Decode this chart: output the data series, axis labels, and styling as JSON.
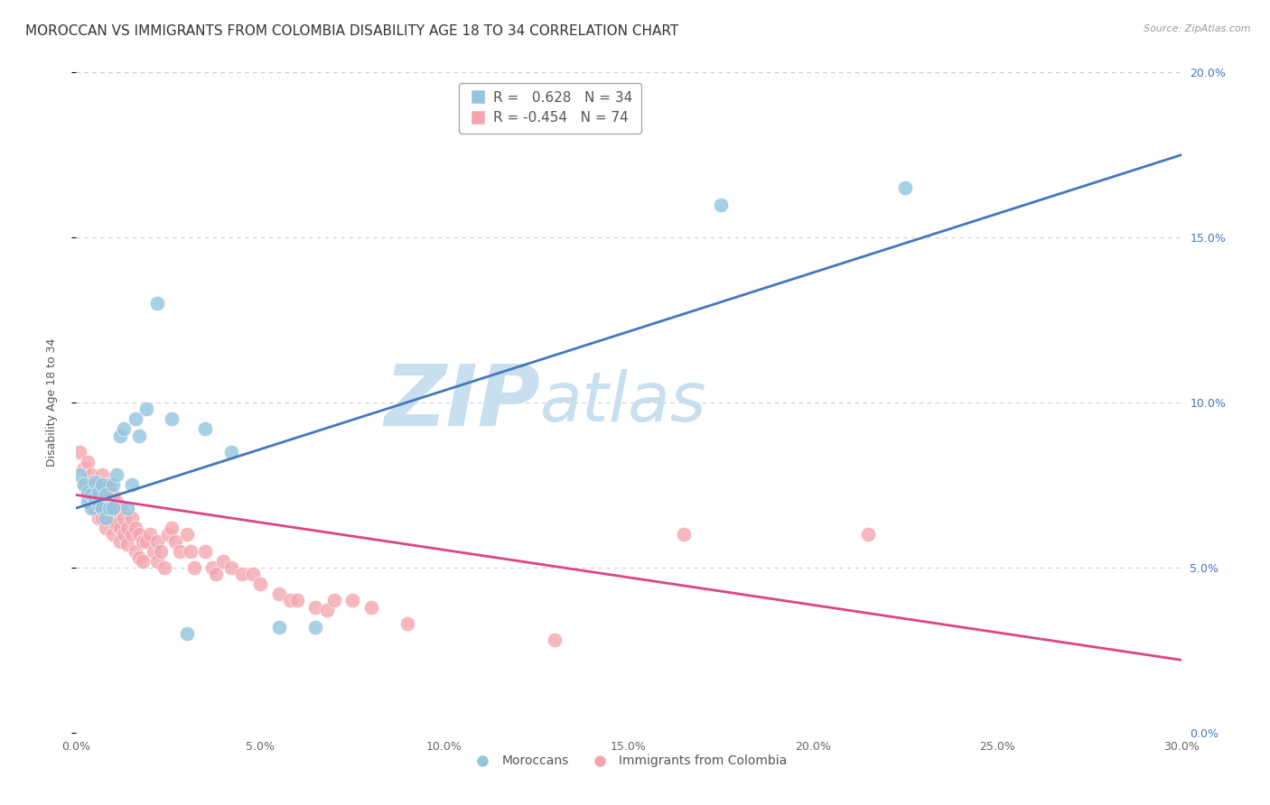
{
  "title": "MOROCCAN VS IMMIGRANTS FROM COLOMBIA DISABILITY AGE 18 TO 34 CORRELATION CHART",
  "source": "Source: ZipAtlas.com",
  "ylabel": "Disability Age 18 to 34",
  "xmin": 0.0,
  "xmax": 0.3,
  "ymin": 0.0,
  "ymax": 0.2,
  "legend_blue_R": "R =  0.628",
  "legend_blue_N": "N = 34",
  "legend_pink_R": "R = -0.454",
  "legend_pink_N": "N = 74",
  "blue_color": "#92c5de",
  "pink_color": "#f4a6b0",
  "blue_line_color": "#4477bb",
  "pink_line_color": "#dd4488",
  "blue_line_x0": 0.0,
  "blue_line_y0": 0.068,
  "blue_line_x1": 0.3,
  "blue_line_y1": 0.175,
  "pink_line_x0": 0.0,
  "pink_line_y0": 0.072,
  "pink_line_x1": 0.3,
  "pink_line_y1": 0.022,
  "moroccans_x": [
    0.001,
    0.002,
    0.003,
    0.003,
    0.004,
    0.004,
    0.005,
    0.005,
    0.006,
    0.006,
    0.007,
    0.007,
    0.008,
    0.008,
    0.009,
    0.01,
    0.01,
    0.011,
    0.012,
    0.013,
    0.014,
    0.015,
    0.016,
    0.017,
    0.019,
    0.022,
    0.026,
    0.03,
    0.035,
    0.042,
    0.055,
    0.065,
    0.175,
    0.225
  ],
  "moroccans_y": [
    0.078,
    0.075,
    0.073,
    0.07,
    0.072,
    0.068,
    0.076,
    0.071,
    0.073,
    0.069,
    0.075,
    0.068,
    0.072,
    0.065,
    0.068,
    0.075,
    0.068,
    0.078,
    0.09,
    0.092,
    0.068,
    0.075,
    0.095,
    0.09,
    0.098,
    0.13,
    0.095,
    0.03,
    0.092,
    0.085,
    0.032,
    0.032,
    0.16,
    0.165
  ],
  "colombia_x": [
    0.001,
    0.002,
    0.002,
    0.003,
    0.003,
    0.004,
    0.004,
    0.005,
    0.005,
    0.006,
    0.006,
    0.006,
    0.007,
    0.007,
    0.007,
    0.008,
    0.008,
    0.008,
    0.009,
    0.009,
    0.01,
    0.01,
    0.01,
    0.011,
    0.011,
    0.012,
    0.012,
    0.012,
    0.013,
    0.013,
    0.014,
    0.014,
    0.015,
    0.015,
    0.016,
    0.016,
    0.017,
    0.017,
    0.018,
    0.018,
    0.019,
    0.02,
    0.021,
    0.022,
    0.022,
    0.023,
    0.024,
    0.025,
    0.026,
    0.027,
    0.028,
    0.03,
    0.031,
    0.032,
    0.035,
    0.037,
    0.038,
    0.04,
    0.042,
    0.045,
    0.048,
    0.05,
    0.055,
    0.058,
    0.06,
    0.065,
    0.068,
    0.07,
    0.075,
    0.08,
    0.09,
    0.13,
    0.165,
    0.215
  ],
  "colombia_y": [
    0.085,
    0.08,
    0.075,
    0.082,
    0.072,
    0.078,
    0.07,
    0.075,
    0.068,
    0.075,
    0.072,
    0.065,
    0.078,
    0.072,
    0.065,
    0.075,
    0.068,
    0.062,
    0.075,
    0.068,
    0.072,
    0.065,
    0.06,
    0.07,
    0.063,
    0.068,
    0.062,
    0.058,
    0.065,
    0.06,
    0.062,
    0.057,
    0.065,
    0.06,
    0.062,
    0.055,
    0.06,
    0.053,
    0.058,
    0.052,
    0.058,
    0.06,
    0.055,
    0.058,
    0.052,
    0.055,
    0.05,
    0.06,
    0.062,
    0.058,
    0.055,
    0.06,
    0.055,
    0.05,
    0.055,
    0.05,
    0.048,
    0.052,
    0.05,
    0.048,
    0.048,
    0.045,
    0.042,
    0.04,
    0.04,
    0.038,
    0.037,
    0.04,
    0.04,
    0.038,
    0.033,
    0.028,
    0.06,
    0.06
  ],
  "grid_color": "#cccccc",
  "background_color": "#ffffff",
  "watermark_zip": "ZIP",
  "watermark_atlas": "atlas",
  "watermark_color": "#c8dff0",
  "title_fontsize": 11,
  "axis_label_fontsize": 9,
  "tick_fontsize": 9,
  "right_tick_color": "#4477bb"
}
